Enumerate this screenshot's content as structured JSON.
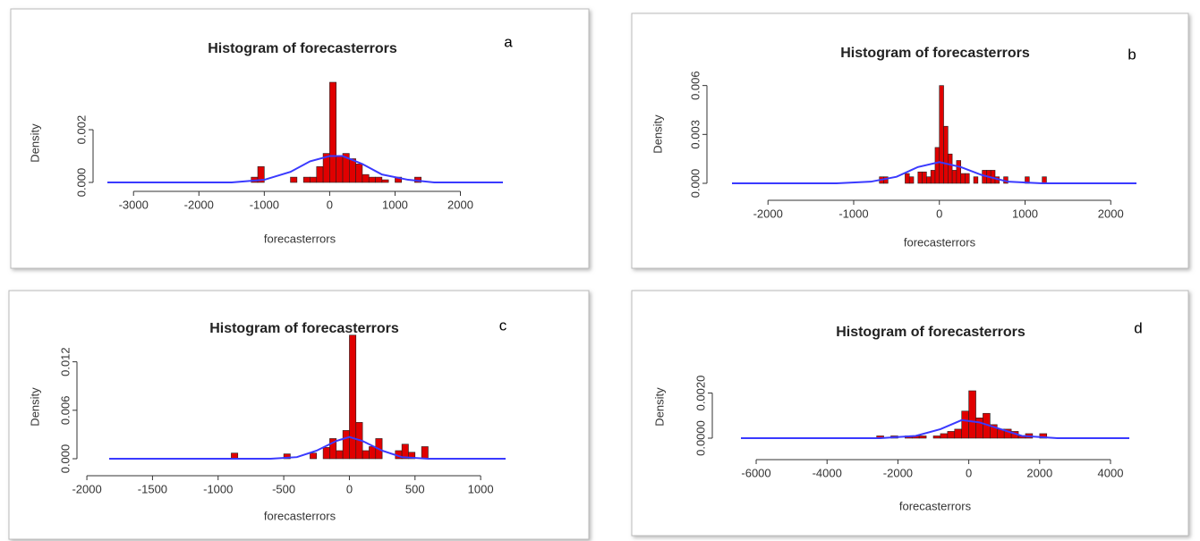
{
  "chart_data": [
    {
      "type": "histogram",
      "title": "Histogram of forecasterrors",
      "panel_label": "a",
      "xlabel": "forecasterrors",
      "ylabel": "Density",
      "bins": [
        -1200,
        -1100,
        -1000,
        -900,
        -800,
        -700,
        -600,
        -500,
        -400,
        -300,
        -200,
        -100,
        0,
        100,
        200,
        300,
        400,
        500,
        600,
        700,
        800,
        900,
        1000,
        1100,
        1200,
        1300,
        1400
      ],
      "values": [
        0.0002,
        0.0006,
        0,
        0,
        0,
        0,
        0.0002,
        0,
        0.0002,
        0.0002,
        0.0006,
        0.0011,
        0.0038,
        0.001,
        0.0011,
        0.0009,
        0.0007,
        0.0003,
        0.0002,
        0.0002,
        0.0001,
        0,
        0.0002,
        0,
        0,
        0.0002
      ],
      "color": "#e00000",
      "line": {
        "color": "#3a3aff",
        "x": [
          -3400,
          -1500,
          -1000,
          -600,
          -300,
          0,
          200,
          500,
          800,
          1200,
          1600,
          2650
        ],
        "values": [
          0,
          0,
          0.0001,
          0.0004,
          0.0008,
          0.001,
          0.001,
          0.0007,
          0.0003,
          0.0001,
          0,
          0
        ]
      },
      "xlim": [
        -3400,
        2650
      ],
      "ylim": [
        0,
        0.0038
      ],
      "xticks": [
        -3000,
        -2000,
        -1000,
        0,
        1000,
        2000
      ],
      "yticks": [
        {
          "value": 0,
          "label": "0.000"
        },
        0.002
      ]
    },
    {
      "type": "histogram",
      "title": "Histogram of forecasterrors",
      "panel_label": "b",
      "xlabel": "forecasterrors",
      "ylabel": "Density",
      "bins": [
        -700,
        -650,
        -600,
        -550,
        -500,
        -450,
        -400,
        -350,
        -300,
        -250,
        -200,
        -150,
        -100,
        -50,
        0,
        50,
        100,
        150,
        200,
        250,
        300,
        350,
        400,
        450,
        500,
        550,
        600,
        650,
        700,
        750,
        800,
        850,
        900,
        950,
        1000,
        1050,
        1100,
        1150,
        1200,
        1250,
        1300
      ],
      "values": [
        0.0004,
        0.0004,
        0,
        0,
        0,
        0,
        0.0006,
        0.0004,
        0,
        0.0007,
        0.0007,
        0.0004,
        0.0008,
        0.0022,
        0.006,
        0.0035,
        0.0018,
        0.0008,
        0.0014,
        0.0006,
        0.0006,
        0,
        0.0004,
        0,
        0.0008,
        0.0008,
        0.0008,
        0.0004,
        0,
        0.0004,
        0,
        0,
        0,
        0,
        0.0004,
        0,
        0,
        0,
        0.0004,
        0
      ],
      "color": "#e00000",
      "line": {
        "color": "#3a3aff",
        "x": [
          -2420,
          -1200,
          -800,
          -500,
          -250,
          0,
          250,
          500,
          800,
          1200,
          2300
        ],
        "values": [
          0,
          0,
          0.0001,
          0.0004,
          0.001,
          0.0013,
          0.001,
          0.0005,
          0.0001,
          0,
          0
        ]
      },
      "xlim": [
        -2420,
        2300
      ],
      "ylim": [
        0,
        0.0062
      ],
      "xticks": [
        -2000,
        -1000,
        0,
        1000,
        2000
      ],
      "yticks": [
        {
          "value": 0,
          "label": "0.000"
        },
        0.003,
        0.006
      ]
    },
    {
      "type": "histogram",
      "title": "Histogram of forecasterrors",
      "panel_label": "c",
      "xlabel": "forecasterrors",
      "ylabel": "Density",
      "bins": [
        -900,
        -850,
        -800,
        -750,
        -700,
        -650,
        -600,
        -550,
        -500,
        -450,
        -400,
        -350,
        -300,
        -250,
        -200,
        -150,
        -100,
        -50,
        0,
        50,
        100,
        150,
        200,
        250,
        300,
        350,
        400,
        450,
        500,
        550,
        600
      ],
      "values": [
        0.0007,
        0,
        0,
        0,
        0,
        0,
        0,
        0,
        0.0006,
        0,
        0,
        0,
        0.0007,
        0,
        0.0014,
        0.0025,
        0.001,
        0.0035,
        0.0153,
        0.0045,
        0.001,
        0.0015,
        0.0025,
        0,
        0,
        0.001,
        0.0018,
        0.0008,
        0,
        0.0015
      ],
      "color": "#e00000",
      "line": {
        "color": "#3a3aff",
        "x": [
          -1830,
          -600,
          -400,
          -250,
          -100,
          0,
          100,
          250,
          400,
          600,
          1190
        ],
        "values": [
          0,
          0,
          0.0002,
          0.001,
          0.0022,
          0.0027,
          0.0022,
          0.001,
          0.0002,
          0,
          0
        ]
      },
      "xlim": [
        -1830,
        1190
      ],
      "ylim": [
        0,
        0.0155
      ],
      "xticks": [
        -2000,
        -1500,
        -1000,
        -500,
        0,
        500,
        1000
      ],
      "yticks": [
        {
          "value": 0,
          "label": "0.000"
        },
        0.006,
        0.012
      ]
    },
    {
      "type": "histogram",
      "title": "Histogram of forecasterrors",
      "panel_label": "d",
      "xlabel": "forecasterrors",
      "ylabel": "Density",
      "bins": [
        -2600,
        -2400,
        -2200,
        -2000,
        -1800,
        -1600,
        -1400,
        -1200,
        -1000,
        -800,
        -600,
        -400,
        -200,
        0,
        200,
        400,
        600,
        800,
        1000,
        1200,
        1400,
        1600,
        1800,
        2000,
        2200
      ],
      "values": [
        0.0001,
        0,
        0.0001,
        0,
        0.0001,
        0.0001,
        0.0001,
        0,
        0.0001,
        0.0002,
        0.0003,
        0.0004,
        0.0012,
        0.0021,
        0.0009,
        0.0011,
        0.0006,
        0.0004,
        0.0004,
        0.0003,
        0.0001,
        0.0002,
        0,
        0.0002
      ],
      "color": "#e00000",
      "line": {
        "color": "#3a3aff",
        "x": [
          -6430,
          -2500,
          -1500,
          -800,
          -200,
          300,
          900,
          1500,
          2500,
          4530
        ],
        "values": [
          0,
          0,
          0.0001,
          0.0004,
          0.0008,
          0.0007,
          0.0004,
          0.0001,
          0,
          0
        ]
      },
      "xlim": [
        -6430,
        4530
      ],
      "ylim": [
        0,
        0.0021
      ],
      "xticks": [
        -6000,
        -4000,
        -2000,
        0,
        2000,
        4000
      ],
      "yticks": [
        {
          "value": 0,
          "label": "0.0000"
        },
        {
          "value": 0.002,
          "label": "0.0020"
        }
      ]
    }
  ]
}
